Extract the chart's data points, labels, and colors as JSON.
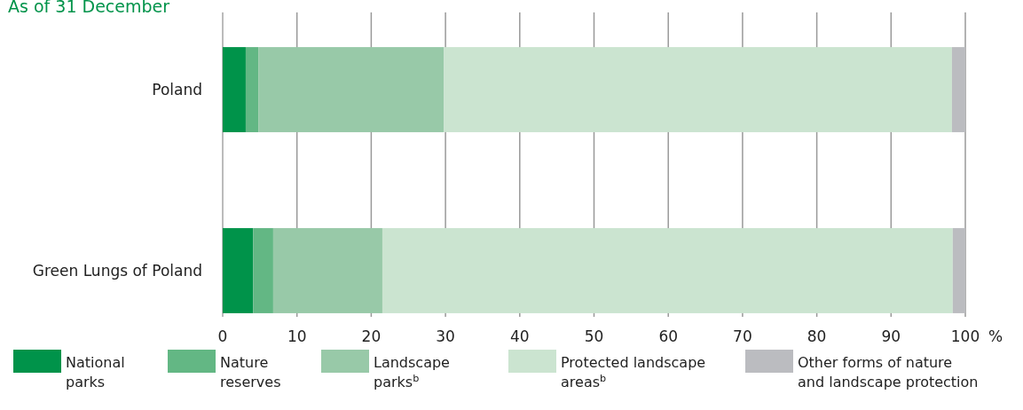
{
  "chart_data": {
    "type": "bar",
    "orientation": "horizontal",
    "stacked": true,
    "subtitle": "As of 31 December",
    "xlabel": "%",
    "categories": [
      "Poland",
      "Green Lungs of Poland"
    ],
    "series": [
      {
        "name": "National parks",
        "color": "#00934a",
        "values": [
          3.1,
          4.1
        ]
      },
      {
        "name": "Nature reserves",
        "color": "#63b784",
        "values": [
          1.7,
          2.7
        ]
      },
      {
        "name": "Landscape parks$^{b}$",
        "color": "#98c9a8",
        "values": [
          25.0,
          14.7
        ]
      },
      {
        "name": "Protected landscape areas$^{b}$",
        "color": "#cbe4d0",
        "values": [
          68.4,
          76.8
        ]
      },
      {
        "name": "Other forms of nature and landscape protection",
        "color": "#bbbcc0",
        "values": [
          1.8,
          1.7
        ]
      }
    ],
    "xlim": [
      0,
      100
    ],
    "xticks": [
      0,
      10,
      20,
      30,
      40,
      50,
      60,
      70,
      80,
      90,
      100
    ],
    "grid": "x",
    "legend": "bottom"
  }
}
